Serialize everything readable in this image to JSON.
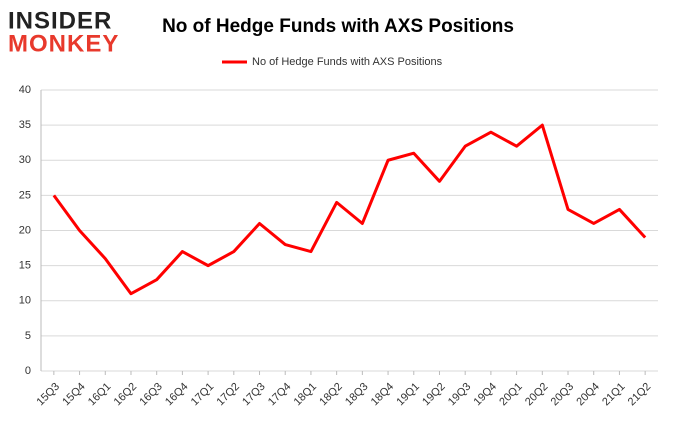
{
  "logo": {
    "line1": "INSIDER",
    "line2": "MONKEY"
  },
  "chart_data": {
    "type": "line",
    "title": "No of Hedge Funds with AXS Positions",
    "categories": [
      "15Q3",
      "15Q4",
      "16Q1",
      "16Q2",
      "16Q3",
      "16Q4",
      "17Q1",
      "17Q2",
      "17Q3",
      "17Q4",
      "18Q1",
      "18Q2",
      "18Q3",
      "18Q4",
      "19Q1",
      "19Q2",
      "19Q3",
      "19Q4",
      "20Q1",
      "20Q2",
      "20Q3",
      "20Q4",
      "21Q1",
      "21Q2"
    ],
    "series": [
      {
        "name": "No of Hedge Funds with AXS Positions",
        "color": "#ff0000",
        "values": [
          25,
          20,
          16,
          11,
          13,
          17,
          15,
          17,
          21,
          18,
          17,
          24,
          21,
          30,
          31,
          27,
          32,
          34,
          32,
          35,
          23,
          21,
          23,
          19
        ]
      }
    ],
    "ylim": [
      0,
      40
    ],
    "yticks": [
      0,
      5,
      10,
      15,
      20,
      25,
      30,
      35,
      40
    ],
    "grid": true,
    "legend": "top"
  }
}
